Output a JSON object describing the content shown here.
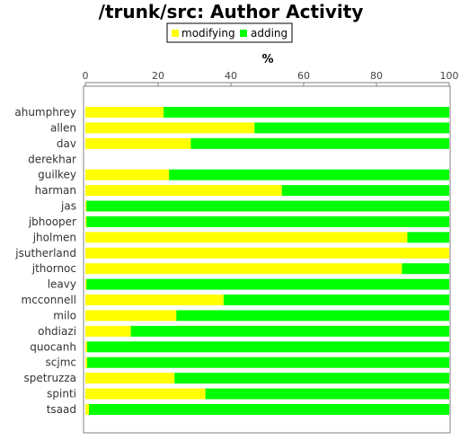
{
  "chart_data": {
    "type": "bar",
    "orientation": "horizontal",
    "stacked": true,
    "title": "/trunk/src: Author Activity",
    "xlabel": "%",
    "xlim": [
      0,
      100
    ],
    "xticks": [
      "0",
      "20",
      "40",
      "60",
      "80",
      "100"
    ],
    "axis_position": "top",
    "legend_position": "top-center",
    "grid": false,
    "categories": [
      "ahumphrey",
      "allen",
      "dav",
      "derekhar",
      "guilkey",
      "harman",
      "jas",
      "jbhooper",
      "jholmen",
      "jsutherland",
      "jthornoc",
      "leavy",
      "mcconnell",
      "milo",
      "ohdiazi",
      "quocanh",
      "scjmc",
      "spetruzza",
      "spinti",
      "tsaad"
    ],
    "series": [
      {
        "name": "modifying",
        "color": "#ffff00",
        "values": [
          21.5,
          46.5,
          29,
          0,
          23,
          54,
          0.3,
          0.3,
          88.5,
          100,
          87,
          0.3,
          38,
          25,
          12.5,
          0.5,
          0.5,
          24.5,
          33,
          1
        ]
      },
      {
        "name": "adding",
        "color": "#00ff00",
        "values": [
          78.5,
          53.5,
          71,
          0,
          77,
          46,
          99.7,
          99.7,
          11.5,
          0,
          13,
          99.7,
          62,
          75,
          87.5,
          99.5,
          99.5,
          75.5,
          67,
          99
        ]
      }
    ]
  }
}
